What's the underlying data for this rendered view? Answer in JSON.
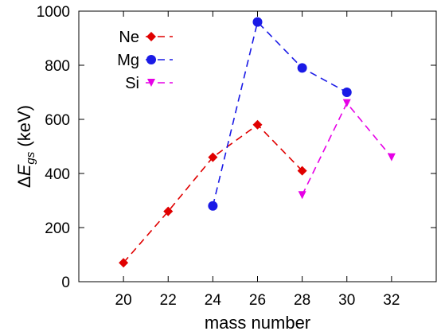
{
  "chart_data": {
    "type": "line",
    "xlabel": "mass number",
    "ylabel": {
      "delta": "Δ",
      "symbol": "E",
      "subscript": "gs",
      "unit": " (keV)"
    },
    "xlim": [
      18,
      34
    ],
    "ylim": [
      0,
      1000
    ],
    "xticks": [
      "20",
      "22",
      "24",
      "26",
      "28",
      "30",
      "32"
    ],
    "yticks": [
      "0",
      "200",
      "400",
      "600",
      "800",
      "1000"
    ],
    "legend_position": "top-left",
    "series": [
      {
        "name": "Ne",
        "color": "#e00000",
        "marker": "diamond",
        "x": [
          20,
          22,
          24,
          26,
          28
        ],
        "y": [
          70,
          260,
          460,
          580,
          410
        ]
      },
      {
        "name": "Mg",
        "color": "#1a1ae6",
        "marker": "circle",
        "x": [
          24,
          26,
          28,
          30
        ],
        "y": [
          280,
          960,
          790,
          700
        ]
      },
      {
        "name": "Si",
        "color": "#e600e6",
        "marker": "triangle-down",
        "x": [
          28,
          30,
          32
        ],
        "y": [
          320,
          660,
          460
        ]
      }
    ]
  }
}
